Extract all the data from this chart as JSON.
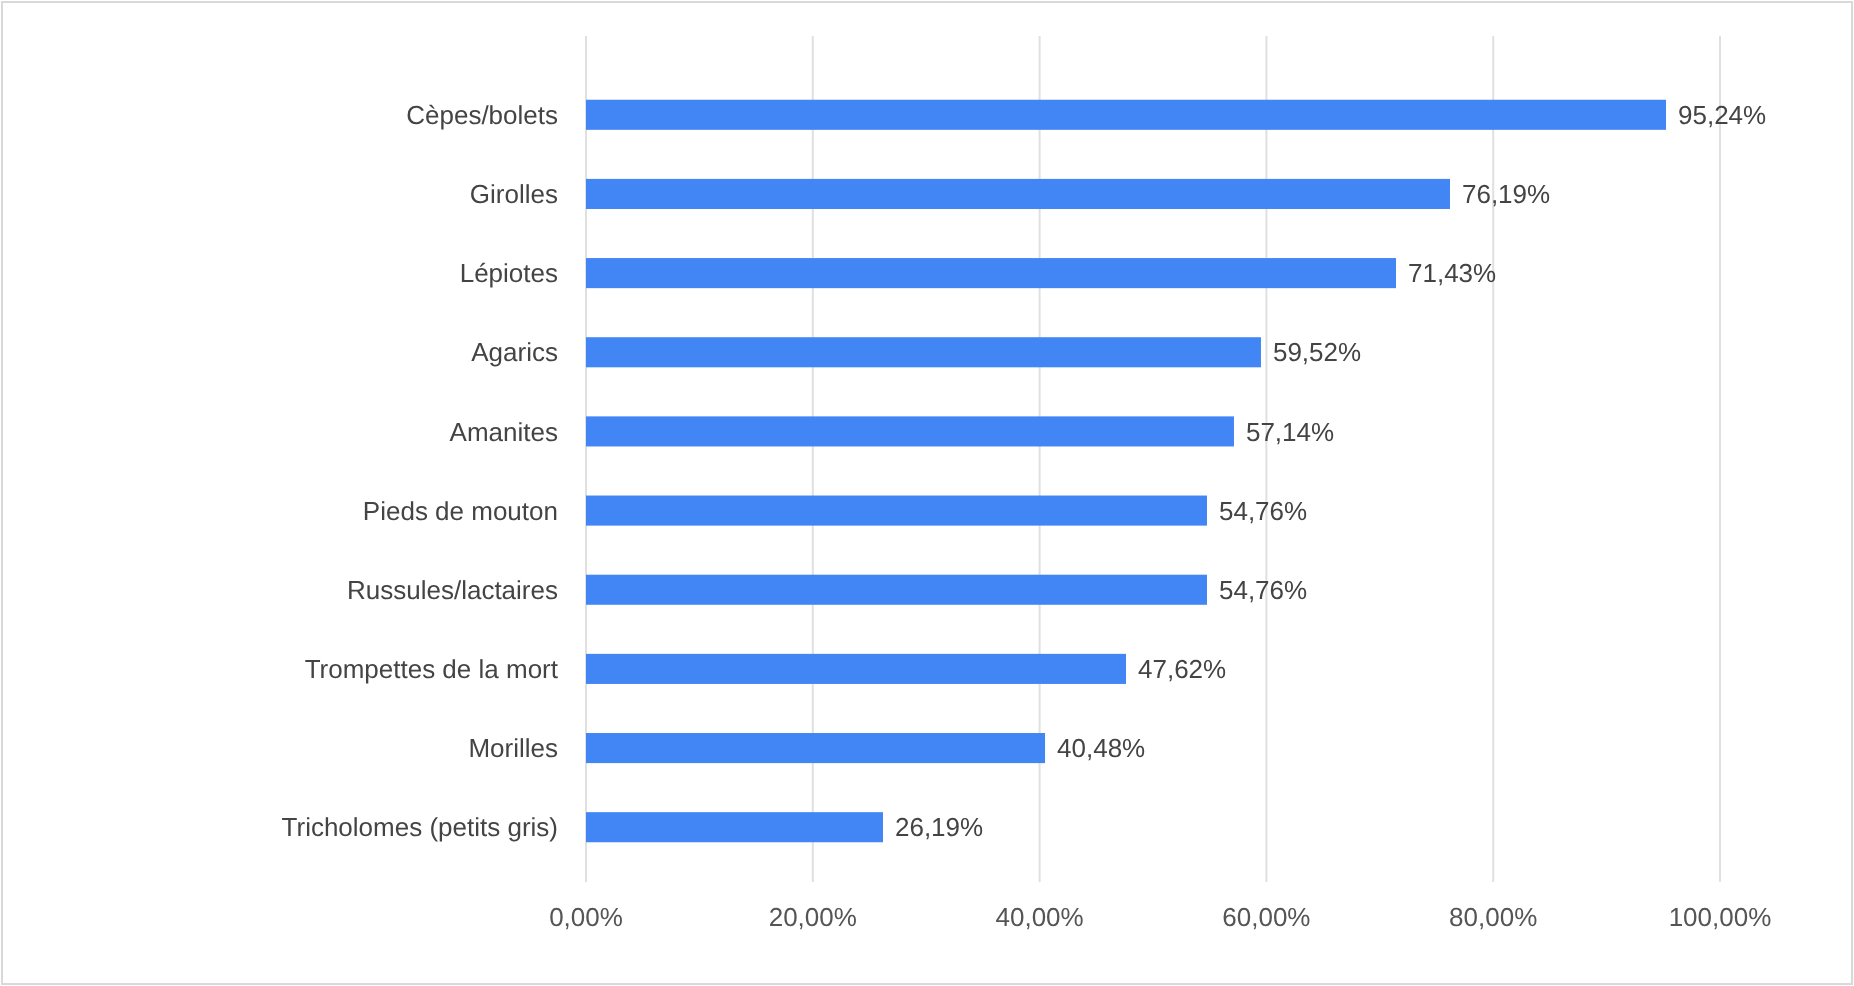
{
  "chart_data": {
    "type": "bar",
    "orientation": "horizontal",
    "categories": [
      "Cèpes/bolets",
      "Girolles",
      "Lépiotes",
      "Agarics",
      "Amanites",
      "Pieds de mouton",
      "Russules/lactaires",
      "Trompettes de la mort",
      "Morilles",
      "Tricholomes (petits gris)"
    ],
    "values": [
      95.24,
      76.19,
      71.43,
      59.52,
      57.14,
      54.76,
      54.76,
      47.62,
      40.48,
      26.19
    ],
    "value_labels": [
      "95,24%",
      "76,19%",
      "71,43%",
      "59,52%",
      "57,14%",
      "54,76%",
      "54,76%",
      "47,62%",
      "40,48%",
      "26,19%"
    ],
    "color": "#4285f4",
    "xlim": [
      0,
      100
    ],
    "xticks": [
      {
        "value": 0,
        "label": "0,00%"
      },
      {
        "value": 20,
        "label": "20,00%"
      },
      {
        "value": 40,
        "label": "40,00%"
      },
      {
        "value": 60,
        "label": "60,00%"
      },
      {
        "value": 80,
        "label": "80,00%"
      },
      {
        "value": 100,
        "label": "100,00%"
      }
    ],
    "grid": "x"
  }
}
